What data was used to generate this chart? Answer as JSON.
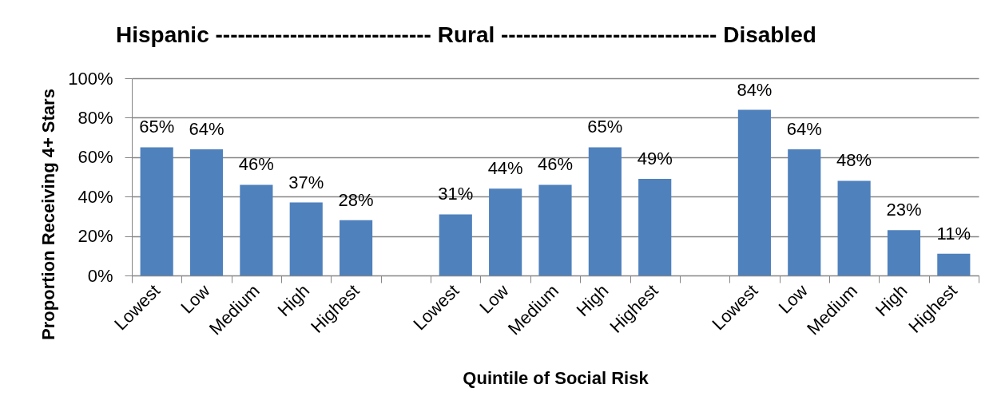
{
  "chart_data": {
    "type": "bar",
    "title": "Hispanic ----------------------------- Rural ----------------------------- Disabled",
    "xlabel": "Quintile of Social Risk",
    "ylabel": "Proportion Receiving 4+ Stars",
    "categories": [
      "Lowest",
      "Low",
      "Medium",
      "High",
      "Highest",
      null,
      "Lowest",
      "Low",
      "Medium",
      "High",
      "Highest",
      null,
      "Lowest",
      "Low",
      "Medium",
      "High",
      "Highest"
    ],
    "values": [
      65,
      64,
      46,
      37,
      28,
      null,
      31,
      44,
      46,
      65,
      49,
      null,
      84,
      64,
      48,
      23,
      11
    ],
    "value_labels": [
      "65%",
      "64%",
      "46%",
      "37%",
      "28%",
      null,
      "31%",
      "44%",
      "46%",
      "65%",
      "49%",
      null,
      "84%",
      "64%",
      "48%",
      "23%",
      "11%"
    ],
    "color": "#4f81bd",
    "ylim": [
      0,
      100
    ],
    "yticks": [
      {
        "value": 0,
        "label": "0%"
      },
      {
        "value": 20,
        "label": "20%"
      },
      {
        "value": 40,
        "label": "40%"
      },
      {
        "value": 60,
        "label": "60%"
      },
      {
        "value": 80,
        "label": "80%"
      },
      {
        "value": 100,
        "label": "100%"
      }
    ],
    "grid": "y"
  }
}
